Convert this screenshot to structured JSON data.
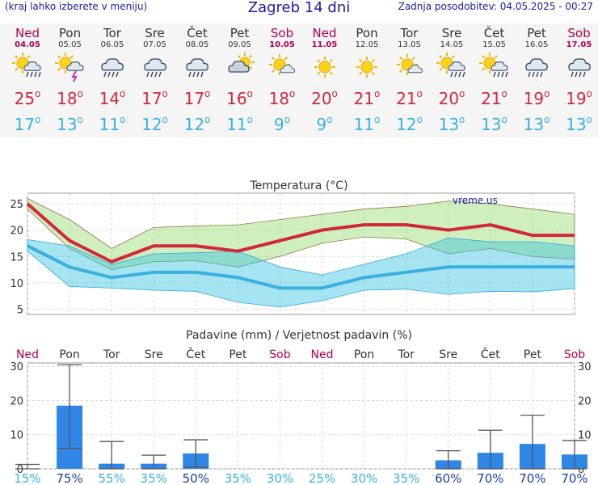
{
  "header": {
    "left_note": "(kraj lahko izberete v meniju)",
    "title": "Zagreb 14 dni",
    "updated": "Zadnja posodobitev: 04.05.2025 - 00:27"
  },
  "days": [
    {
      "name": "Ned",
      "date": "04.05",
      "weekend": true,
      "icon": "sun-cloud-rain-icon",
      "tmax": "25",
      "tmin": "17"
    },
    {
      "name": "Pon",
      "date": "05.05",
      "weekend": false,
      "icon": "sun-cloud-storm-icon",
      "tmax": "18",
      "tmin": "13"
    },
    {
      "name": "Tor",
      "date": "06.05",
      "weekend": false,
      "icon": "cloud-rain-icon",
      "tmax": "14",
      "tmin": "11"
    },
    {
      "name": "Sre",
      "date": "07.05",
      "weekend": false,
      "icon": "cloud-rain-icon",
      "tmax": "17",
      "tmin": "12"
    },
    {
      "name": "Čet",
      "date": "08.05",
      "weekend": false,
      "icon": "cloud-rain-icon",
      "tmax": "17",
      "tmin": "12"
    },
    {
      "name": "Pet",
      "date": "09.05",
      "weekend": false,
      "icon": "sun-cloud-icon",
      "tmax": "16",
      "tmin": "11"
    },
    {
      "name": "Sob",
      "date": "10.05",
      "weekend": true,
      "icon": "sun-small-cloud-icon",
      "tmax": "18",
      "tmin": "9"
    },
    {
      "name": "Ned",
      "date": "11.05",
      "weekend": true,
      "icon": "sun-icon",
      "tmax": "20",
      "tmin": "9"
    },
    {
      "name": "Pon",
      "date": "12.05",
      "weekend": false,
      "icon": "sun-icon",
      "tmax": "21",
      "tmin": "11"
    },
    {
      "name": "Tor",
      "date": "13.05",
      "weekend": false,
      "icon": "sun-small-cloud-icon",
      "tmax": "21",
      "tmin": "12"
    },
    {
      "name": "Sre",
      "date": "14.05",
      "weekend": false,
      "icon": "sun-cloud-rain-icon",
      "tmax": "20",
      "tmin": "13"
    },
    {
      "name": "Čet",
      "date": "15.05",
      "weekend": false,
      "icon": "sun-cloud-rain-icon",
      "tmax": "21",
      "tmin": "13"
    },
    {
      "name": "Pet",
      "date": "16.05",
      "weekend": false,
      "icon": "cloud-rain-icon",
      "tmax": "19",
      "tmin": "13"
    },
    {
      "name": "Sob",
      "date": "17.05",
      "weekend": true,
      "icon": "cloud-rain-icon",
      "tmax": "19",
      "tmin": "13"
    }
  ],
  "colors": {
    "tmax": "#d0283c",
    "tmin": "#3ab0e0",
    "weekend": "#b0004c",
    "bar": "#2f86e6"
  },
  "chart_data": [
    {
      "type": "line",
      "title": "Temperatura (°C)",
      "watermark": "vreme.us",
      "ylim": [
        4,
        27
      ],
      "yticks": [
        5,
        10,
        15,
        20,
        25
      ],
      "grid": true,
      "x": [
        0,
        1,
        2,
        3,
        4,
        5,
        6,
        7,
        8,
        9,
        10,
        11,
        12,
        13
      ],
      "series": [
        {
          "name": "Tmax",
          "values": [
            25,
            18,
            14,
            17,
            17,
            16,
            18,
            20,
            21,
            21,
            20,
            21,
            19,
            19
          ]
        },
        {
          "name": "Tmax upper",
          "values": [
            26,
            22,
            16.5,
            20.5,
            20.8,
            21,
            22,
            23,
            24,
            24.5,
            25.5,
            25,
            24,
            23
          ]
        },
        {
          "name": "Tmax lower",
          "values": [
            24,
            16.5,
            12.5,
            14,
            14.2,
            13,
            15,
            17.5,
            18.7,
            18.3,
            15.5,
            16.5,
            15,
            14.5
          ]
        },
        {
          "name": "Tmin",
          "values": [
            17,
            13,
            11,
            12,
            12,
            11,
            9,
            9,
            11,
            12,
            13,
            13,
            13,
            13
          ]
        },
        {
          "name": "Tmin upper",
          "values": [
            18.2,
            17,
            13.5,
            15.5,
            15.7,
            16,
            13,
            11.5,
            13.5,
            15.5,
            18.5,
            17.8,
            17.8,
            17
          ]
        },
        {
          "name": "Tmin lower",
          "values": [
            16,
            9.3,
            9,
            8.6,
            8.4,
            6.3,
            5.4,
            6.6,
            8.6,
            8.8,
            7.8,
            8.4,
            8.3,
            8.9
          ]
        }
      ]
    },
    {
      "type": "bar",
      "title": "Padavine (mm) / Verjetnost padavin (%)",
      "ylim": [
        0,
        31
      ],
      "yticks": [
        0,
        10,
        20,
        30
      ],
      "grid": true,
      "categories": [
        "Ned",
        "Pon",
        "Tor",
        "Sre",
        "Čet",
        "Pet",
        "Sob",
        "Ned",
        "Pon",
        "Tor",
        "Sre",
        "Čet",
        "Pet",
        "Sob"
      ],
      "values": [
        0,
        18.5,
        1.5,
        1.5,
        4.5,
        0,
        0,
        0,
        0,
        0,
        2.5,
        4.7,
        7.3,
        4.2
      ],
      "error_low": [
        0,
        6,
        0,
        0,
        0.5,
        0,
        0,
        0,
        0,
        0,
        0,
        0,
        0,
        0
      ],
      "error_high": [
        1.3,
        30.5,
        8,
        4,
        8.5,
        0,
        0,
        0,
        0,
        0,
        5.3,
        11.3,
        15.7,
        8.3
      ],
      "probabilities": [
        "15%",
        "75%",
        "55%",
        "35%",
        "50%",
        "35%",
        "30%",
        "25%",
        "30%",
        "35%",
        "60%",
        "70%",
        "70%",
        "70%"
      ],
      "high_probability": [
        false,
        true,
        false,
        false,
        true,
        false,
        false,
        false,
        false,
        false,
        true,
        true,
        true,
        true
      ]
    }
  ]
}
